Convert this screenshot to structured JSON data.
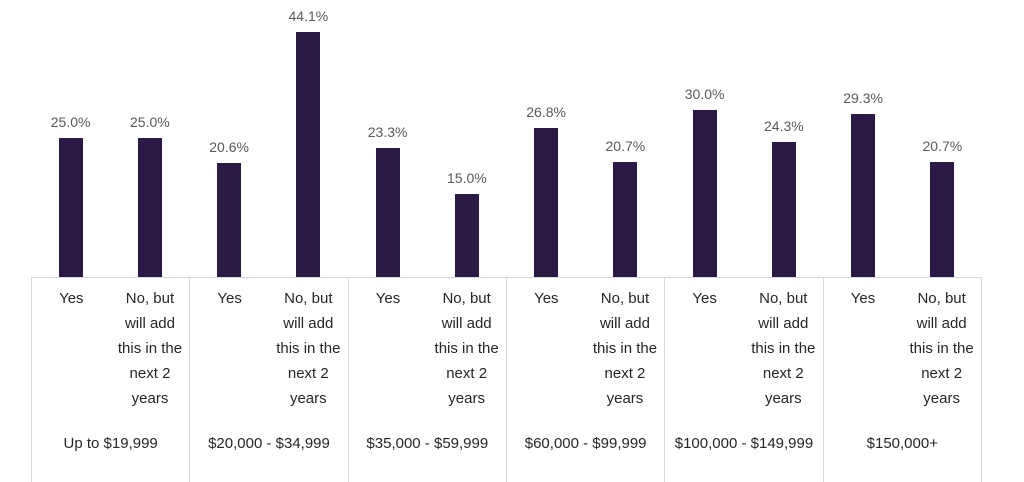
{
  "chart_data": {
    "type": "bar",
    "title": "",
    "categories": [
      "Up to $19,999",
      "$20,000 - $34,999",
      "$35,000 - $59,999",
      "$60,000 - $99,999",
      "$100,000 - $149,999",
      "$150,000+"
    ],
    "sub_categories": [
      "Yes",
      "No, but will add this in the next 2 years"
    ],
    "series": [
      {
        "name": "Yes",
        "values": [
          25.0,
          20.6,
          23.3,
          26.8,
          30.0,
          29.3
        ],
        "labels": [
          "25.0%",
          "20.6%",
          "23.3%",
          "26.8%",
          "30.0%",
          "29.3%"
        ]
      },
      {
        "name": "No, but will add this in the next 2 years",
        "values": [
          25.0,
          44.1,
          15.0,
          20.7,
          24.3,
          20.7
        ],
        "labels": [
          "25.0%",
          "44.1%",
          "15.0%",
          "20.7%",
          "24.3%",
          "20.7%"
        ]
      }
    ],
    "ylim": [
      0,
      45
    ],
    "xlabel": "",
    "ylabel": "",
    "grid": false,
    "legend": "none",
    "value_labels_shown": true,
    "colors": {
      "bar": "#2A1A45",
      "value_label": "#595959",
      "category_label": "#262626",
      "axis_line": "#D9D9D9",
      "background": "#FFFFFF"
    }
  }
}
